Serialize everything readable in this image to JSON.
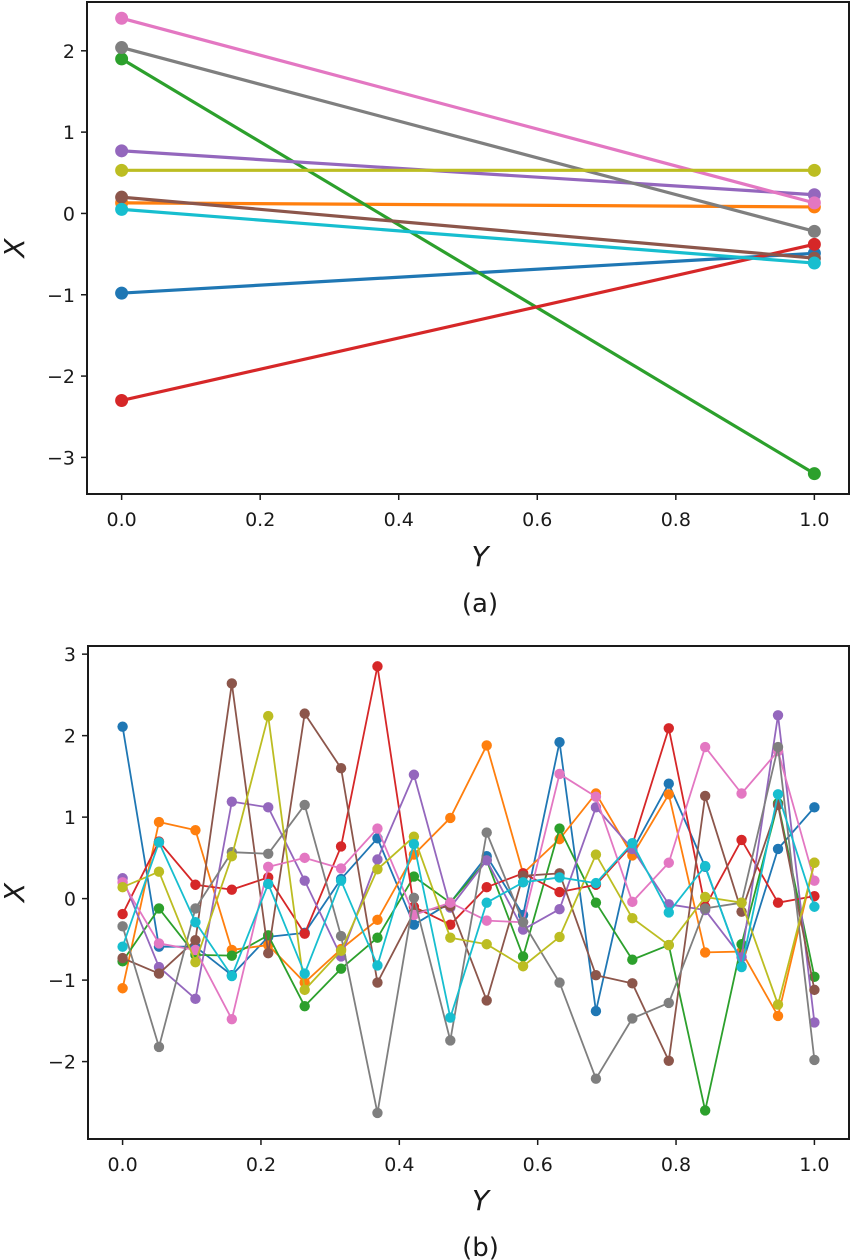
{
  "colors": [
    "#1f77b4",
    "#ff7f0e",
    "#2ca02c",
    "#d62728",
    "#9467bd",
    "#8c564b",
    "#e377c2",
    "#7f7f7f",
    "#bcbd22",
    "#17becf"
  ],
  "chart_data": [
    {
      "type": "line",
      "caption": "(a)",
      "title": "",
      "xlabel": "Y",
      "ylabel": "X",
      "xlim": [
        -0.05,
        1.05
      ],
      "ylim": [
        -3.45,
        2.6
      ],
      "xticks": [
        0.0,
        0.2,
        0.4,
        0.6,
        0.8,
        1.0
      ],
      "xtick_labels": [
        "0.0",
        "0.2",
        "0.4",
        "0.6",
        "0.8",
        "1.0"
      ],
      "yticks": [
        -3,
        -2,
        -1,
        0,
        1,
        2
      ],
      "ytick_labels": [
        "−3",
        "−2",
        "−1",
        "0",
        "1",
        "2"
      ],
      "grid": false,
      "legend": "none",
      "x": [
        0.0,
        1.0
      ],
      "series": [
        {
          "name": "series-0",
          "color": "#1f77b4",
          "values": [
            -0.98,
            -0.49
          ]
        },
        {
          "name": "series-1",
          "color": "#ff7f0e",
          "values": [
            0.13,
            0.08
          ]
        },
        {
          "name": "series-2",
          "color": "#2ca02c",
          "values": [
            1.9,
            -3.2
          ]
        },
        {
          "name": "series-3",
          "color": "#d62728",
          "values": [
            -2.3,
            -0.38
          ]
        },
        {
          "name": "series-4",
          "color": "#9467bd",
          "values": [
            0.77,
            0.23
          ]
        },
        {
          "name": "series-5",
          "color": "#8c564b",
          "values": [
            0.2,
            -0.55
          ]
        },
        {
          "name": "series-6",
          "color": "#e377c2",
          "values": [
            2.4,
            0.13
          ]
        },
        {
          "name": "series-7",
          "color": "#7f7f7f",
          "values": [
            2.04,
            -0.22
          ]
        },
        {
          "name": "series-8",
          "color": "#bcbd22",
          "values": [
            0.53,
            0.53
          ]
        },
        {
          "name": "series-9",
          "color": "#17becf",
          "values": [
            0.05,
            -0.61
          ]
        }
      ]
    },
    {
      "type": "line",
      "caption": "(b)",
      "title": "",
      "xlabel": "Y",
      "ylabel": "X",
      "xlim": [
        -0.05,
        1.05
      ],
      "ylim": [
        -2.95,
        3.1
      ],
      "xticks": [
        0.0,
        0.2,
        0.4,
        0.6,
        0.8,
        1.0
      ],
      "xtick_labels": [
        "0.0",
        "0.2",
        "0.4",
        "0.6",
        "0.8",
        "1.0"
      ],
      "yticks": [
        -2,
        -1,
        0,
        1,
        2,
        3
      ],
      "ytick_labels": [
        "−2",
        "−1",
        "0",
        "1",
        "2",
        "3"
      ],
      "grid": false,
      "legend": "none",
      "x": [
        0.0,
        0.0526,
        0.1053,
        0.1579,
        0.2105,
        0.2632,
        0.3158,
        0.3684,
        0.4211,
        0.4737,
        0.5263,
        0.5789,
        0.6316,
        0.6842,
        0.7368,
        0.7895,
        0.8421,
        0.8947,
        0.9474,
        1.0
      ],
      "series": [
        {
          "name": "series-0",
          "color": "#1f77b4",
          "values": [
            2.11,
            -0.59,
            -0.59,
            -0.94,
            -0.47,
            -0.42,
            0.24,
            0.74,
            -0.32,
            -0.05,
            0.52,
            -0.2,
            1.92,
            -1.38,
            0.59,
            1.41,
            0.39,
            -0.83,
            0.61,
            1.12
          ]
        },
        {
          "name": "series-1",
          "color": "#ff7f0e",
          "values": [
            -1.1,
            0.94,
            0.84,
            -0.63,
            -0.57,
            -1.03,
            -0.62,
            -0.26,
            0.54,
            0.99,
            1.88,
            0.31,
            0.73,
            1.29,
            0.53,
            1.28,
            -0.66,
            -0.65,
            -1.44,
            0.44
          ]
        },
        {
          "name": "series-2",
          "color": "#2ca02c",
          "values": [
            -0.77,
            -0.12,
            -0.69,
            -0.7,
            -0.45,
            -1.32,
            -0.86,
            -0.48,
            0.27,
            -0.05,
            0.47,
            -0.71,
            0.86,
            -0.05,
            -0.75,
            -0.57,
            -2.6,
            -0.56,
            1.17,
            -0.96
          ]
        },
        {
          "name": "series-3",
          "color": "#d62728",
          "values": [
            -0.19,
            0.7,
            0.17,
            0.11,
            0.26,
            -0.43,
            0.64,
            2.85,
            -0.1,
            -0.32,
            0.14,
            0.31,
            0.08,
            0.17,
            0.66,
            2.09,
            -0.1,
            0.72,
            -0.05,
            0.03
          ]
        },
        {
          "name": "series-4",
          "color": "#9467bd",
          "values": [
            0.25,
            -0.84,
            -1.23,
            1.19,
            1.12,
            0.22,
            -0.71,
            0.48,
            1.52,
            -0.11,
            0.47,
            -0.38,
            -0.13,
            1.12,
            0.61,
            -0.07,
            -0.14,
            -0.72,
            2.25,
            -1.52
          ]
        },
        {
          "name": "series-5",
          "color": "#8c564b",
          "values": [
            -0.73,
            -0.92,
            -0.51,
            2.64,
            -0.67,
            2.27,
            1.6,
            -1.03,
            -0.17,
            -0.09,
            -1.25,
            0.28,
            0.31,
            -0.94,
            -1.04,
            -1.99,
            1.26,
            -0.16,
            1.15,
            -1.12
          ]
        },
        {
          "name": "series-6",
          "color": "#e377c2",
          "values": [
            0.2,
            -0.55,
            -0.63,
            -1.48,
            0.39,
            0.5,
            0.37,
            0.86,
            -0.2,
            -0.05,
            -0.27,
            -0.29,
            1.53,
            1.25,
            -0.04,
            0.44,
            1.86,
            1.29,
            1.81,
            0.22
          ]
        },
        {
          "name": "series-7",
          "color": "#7f7f7f",
          "values": [
            -0.34,
            -1.82,
            -0.12,
            0.57,
            0.55,
            1.15,
            -0.46,
            -2.63,
            0.01,
            -1.74,
            0.81,
            -0.29,
            -1.03,
            -2.21,
            -1.47,
            -1.28,
            -0.12,
            -0.05,
            1.86,
            -1.98
          ]
        },
        {
          "name": "series-8",
          "color": "#bcbd22",
          "values": [
            0.14,
            0.33,
            -0.78,
            0.52,
            2.24,
            -1.12,
            -0.64,
            0.36,
            0.76,
            -0.48,
            -0.56,
            -0.83,
            -0.47,
            0.54,
            -0.24,
            -0.57,
            0.02,
            -0.05,
            -1.3,
            0.44
          ]
        },
        {
          "name": "series-9",
          "color": "#17becf",
          "values": [
            -0.59,
            0.69,
            -0.29,
            -0.95,
            0.18,
            -0.92,
            0.22,
            -0.82,
            0.67,
            -1.46,
            -0.05,
            0.2,
            0.26,
            0.19,
            0.68,
            -0.17,
            0.4,
            -0.84,
            1.28,
            -0.1
          ]
        }
      ]
    }
  ]
}
